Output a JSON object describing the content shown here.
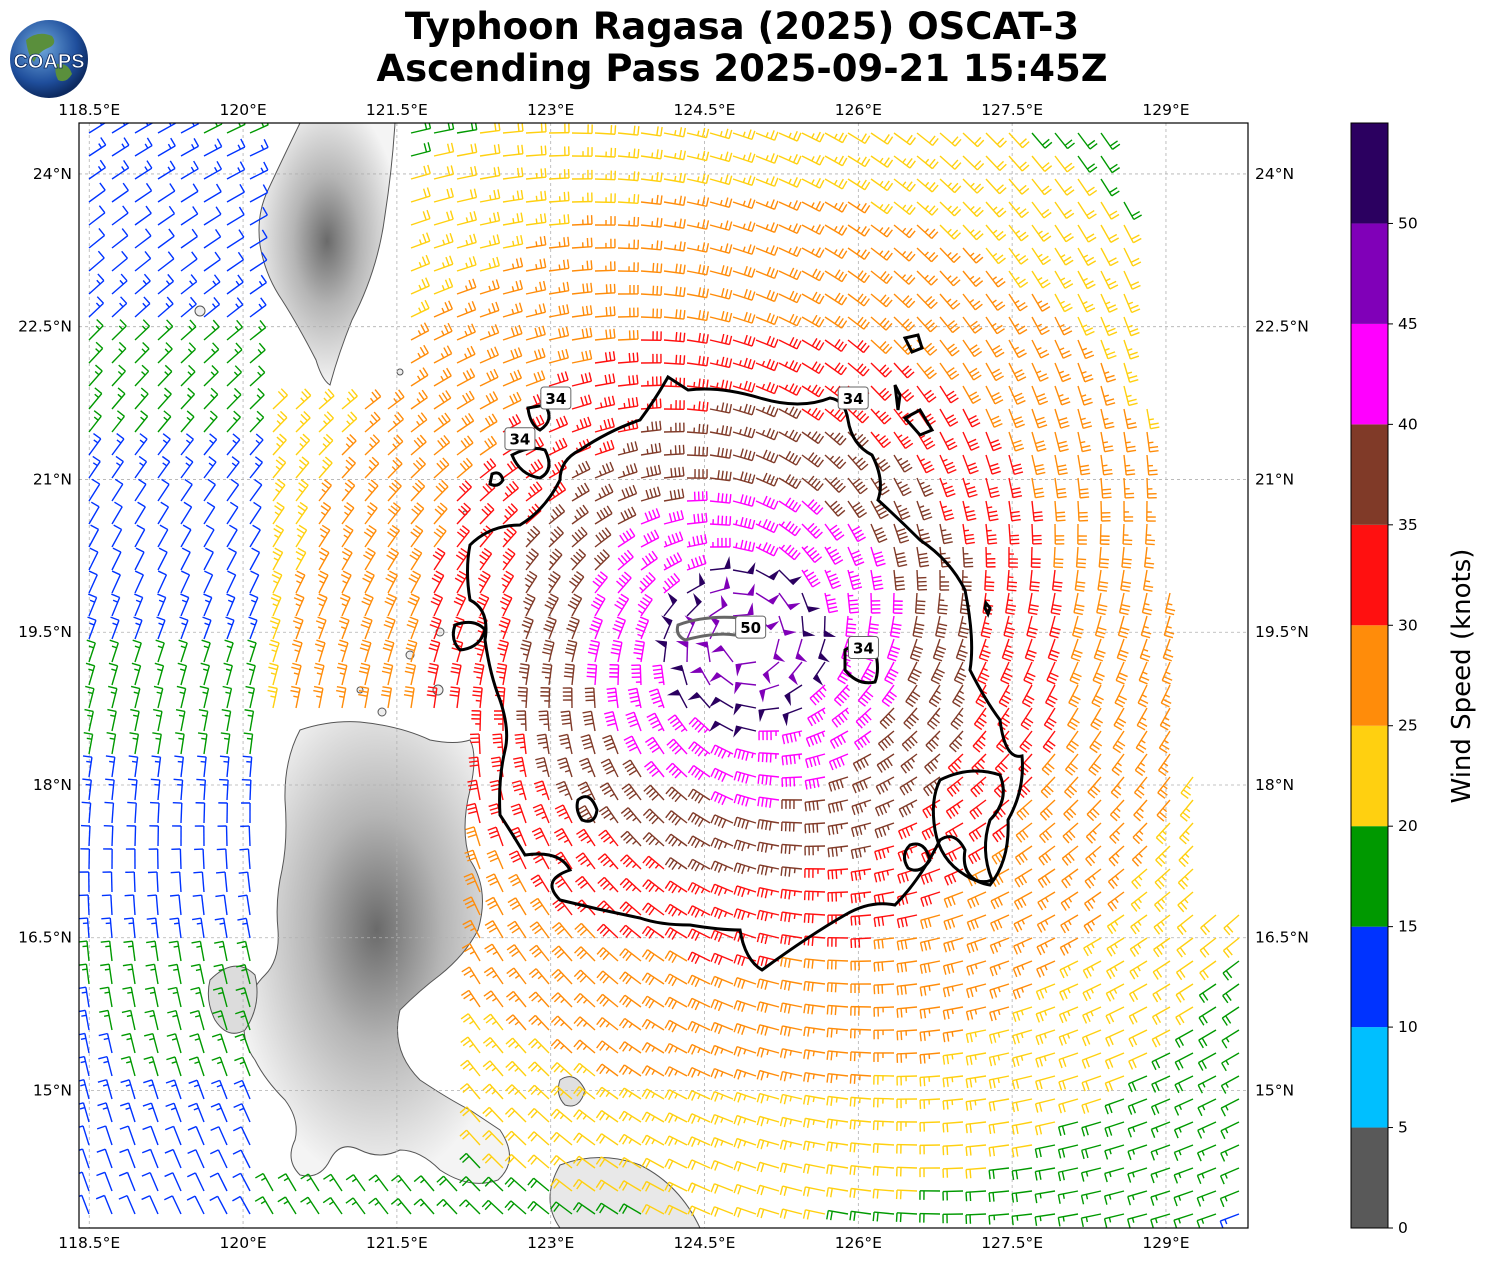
{
  "header": {
    "title_line1": "Typhoon Ragasa (2025) OSCAT-3",
    "title_line2": "Ascending Pass 2025-09-21 15:45Z",
    "logo_text": "COAPS"
  },
  "map": {
    "extent": {
      "lon_min": 118.4,
      "lon_max": 129.8,
      "lat_min": 13.65,
      "lat_max": 24.5
    },
    "lon_ticks": [
      "118.5°E",
      "120°E",
      "121.5°E",
      "123°E",
      "124.5°E",
      "126°E",
      "127.5°E",
      "129°E"
    ],
    "lon_values": [
      118.5,
      120,
      121.5,
      123,
      124.5,
      126,
      127.5,
      129
    ],
    "lat_ticks": [
      "24°N",
      "22.5°N",
      "21°N",
      "19.5°N",
      "18°N",
      "16.5°N",
      "15°N"
    ],
    "lat_values": [
      24,
      22.5,
      21,
      19.5,
      18,
      16.5,
      15
    ],
    "storm_center": {
      "lon": 124.9,
      "lat": 19.4
    },
    "contour_labels": [
      {
        "text": "34",
        "lon": 123.05,
        "lat": 21.8
      },
      {
        "text": "34",
        "lon": 122.7,
        "lat": 21.4
      },
      {
        "text": "34",
        "lon": 125.95,
        "lat": 21.8
      },
      {
        "text": "34",
        "lon": 126.05,
        "lat": 19.35
      },
      {
        "text": "50",
        "lon": 124.95,
        "lat": 19.55
      }
    ],
    "contour_levels": [
      "34",
      "50"
    ],
    "grid": true
  },
  "colorbar": {
    "label": "Wind Speed (knots)",
    "ticks": [
      "0",
      "5",
      "10",
      "15",
      "20",
      "25",
      "30",
      "35",
      "40",
      "45",
      "50"
    ],
    "tick_values": [
      0,
      5,
      10,
      15,
      20,
      25,
      30,
      35,
      40,
      45,
      50
    ],
    "max": 55,
    "bands": [
      {
        "from": 0,
        "to": 5,
        "color": "#595959"
      },
      {
        "from": 5,
        "to": 10,
        "color": "#00bfff"
      },
      {
        "from": 10,
        "to": 15,
        "color": "#0033ff"
      },
      {
        "from": 15,
        "to": 20,
        "color": "#009900"
      },
      {
        "from": 20,
        "to": 25,
        "color": "#ffd010"
      },
      {
        "from": 25,
        "to": 30,
        "color": "#ff8c0a"
      },
      {
        "from": 30,
        "to": 35,
        "color": "#ff1010"
      },
      {
        "from": 35,
        "to": 40,
        "color": "#803a28"
      },
      {
        "from": 40,
        "to": 45,
        "color": "#ff00ff"
      },
      {
        "from": 45,
        "to": 50,
        "color": "#8000b8"
      },
      {
        "from": 50,
        "to": 55,
        "color": "#2b0060"
      }
    ]
  }
}
